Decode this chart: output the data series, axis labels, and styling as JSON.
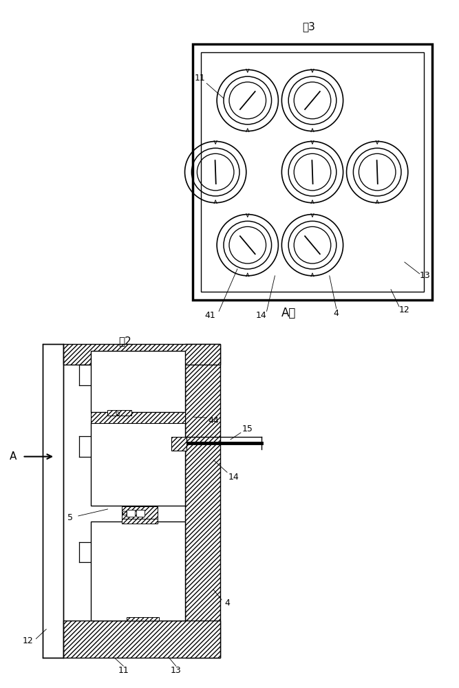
{
  "fig_width": 6.67,
  "fig_height": 10.0,
  "bg_color": "#ffffff",
  "line_color": "#000000",
  "fig2_label": "图2",
  "fig3_label": "图3",
  "a_direction_label": "A向"
}
